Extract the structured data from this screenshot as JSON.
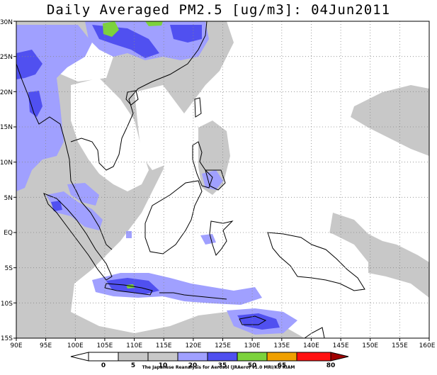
{
  "title": "Daily Averaged PM2.5 [ug/m3]: 04Jun2011",
  "map": {
    "region": "Southeast Asia",
    "lon_range": [
      90,
      160
    ],
    "lat_range": [
      -15,
      30
    ],
    "grid": "dotted",
    "lon_labels": [
      "90E",
      "95E",
      "100E",
      "105E",
      "110E",
      "115E",
      "120E",
      "125E",
      "130E",
      "135E",
      "140E",
      "145E",
      "150E",
      "155E",
      "160E"
    ],
    "lat_labels": [
      "30N",
      "25N",
      "20N",
      "15N",
      "10N",
      "5N",
      "EQ",
      "5S",
      "10S",
      "15S"
    ]
  },
  "colorbar": {
    "ticks": [
      "0",
      "5",
      "10",
      "20",
      "35",
      "50",
      "65",
      "80"
    ],
    "colors": [
      "#ffffff",
      "#c8c8c8",
      "#a0a0ff",
      "#5050f0",
      "#7cd23c",
      "#f0a000",
      "#ff1010",
      "#a00000"
    ]
  },
  "credit": "The Japanese Reanalysis for Aerosol (JRAero) v1.0 MRI/KU RIAM"
}
